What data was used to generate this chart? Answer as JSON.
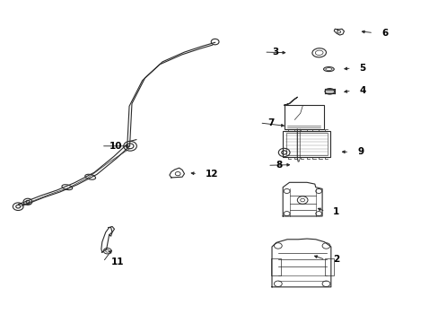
{
  "bg_color": "#ffffff",
  "line_color": "#2a2a2a",
  "fig_width": 4.89,
  "fig_height": 3.6,
  "dpi": 100,
  "label_data": {
    "1": [
      0.76,
      0.345,
      0.718,
      0.358
    ],
    "2": [
      0.76,
      0.195,
      0.71,
      0.21
    ],
    "3": [
      0.62,
      0.84,
      0.658,
      0.838
    ],
    "4": [
      0.82,
      0.72,
      0.778,
      0.715
    ],
    "5": [
      0.82,
      0.79,
      0.778,
      0.787
    ],
    "6": [
      0.87,
      0.9,
      0.818,
      0.905
    ],
    "7": [
      0.61,
      0.62,
      0.655,
      0.61
    ],
    "8": [
      0.628,
      0.488,
      0.668,
      0.49
    ],
    "9": [
      0.815,
      0.53,
      0.773,
      0.53
    ],
    "10": [
      0.248,
      0.548,
      0.3,
      0.548
    ],
    "11": [
      0.252,
      0.188,
      0.258,
      0.232
    ],
    "12": [
      0.468,
      0.462,
      0.428,
      0.465
    ]
  }
}
